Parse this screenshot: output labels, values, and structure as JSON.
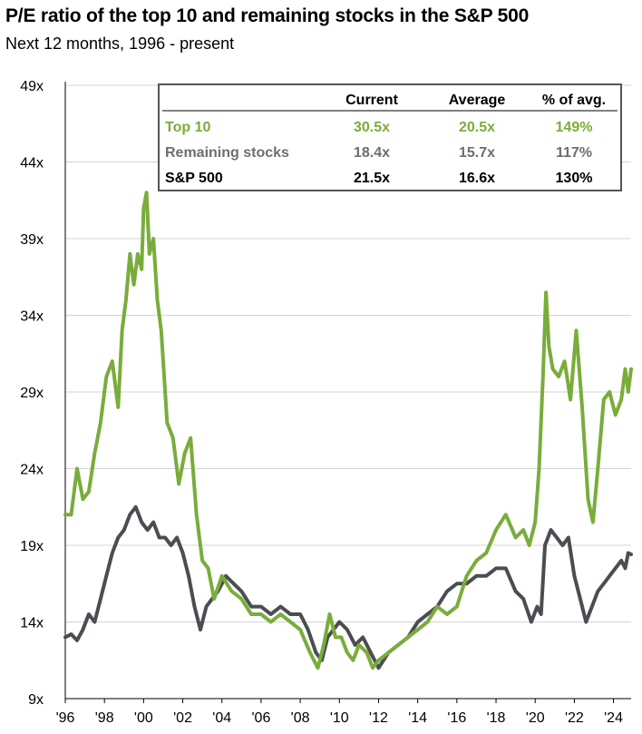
{
  "title": "P/E ratio of the top 10 and remaining stocks in the S&P 500",
  "subtitle": "Next 12 months, 1996 - present",
  "colors": {
    "top10": "#7aac3b",
    "remaining": "#4a4d52",
    "sp500": "#000000"
  },
  "table": {
    "headers": [
      "Current",
      "Average",
      "% of avg."
    ],
    "rows": [
      {
        "label": "Top 10",
        "color": "#7aac3b",
        "values": [
          "30.5x",
          "20.5x",
          "149%"
        ]
      },
      {
        "label": "Remaining stocks",
        "color": "#6b6e73",
        "values": [
          "18.4x",
          "15.7x",
          "117%"
        ]
      },
      {
        "label": "S&P 500",
        "color": "#000000",
        "values": [
          "21.5x",
          "16.6x",
          "130%"
        ]
      }
    ]
  },
  "chart_data": {
    "type": "line",
    "title": "P/E ratio of the top 10 and remaining stocks in the S&P 500",
    "subtitle": "Next 12 months, 1996 - present",
    "xlabel": "",
    "ylabel": "",
    "xlim": [
      1996,
      2024.9
    ],
    "ylim": [
      9,
      49
    ],
    "y_ticks": [
      9,
      14,
      19,
      24,
      29,
      34,
      39,
      44,
      49
    ],
    "y_tick_labels": [
      "9x",
      "14x",
      "19x",
      "24x",
      "29x",
      "34x",
      "39x",
      "44x",
      "49x"
    ],
    "x_ticks": [
      1996,
      1998,
      2000,
      2002,
      2004,
      2006,
      2008,
      2010,
      2012,
      2014,
      2016,
      2018,
      2020,
      2022,
      2024
    ],
    "x_tick_labels": [
      "'96",
      "'98",
      "'00",
      "'02",
      "'04",
      "'06",
      "'08",
      "'10",
      "'12",
      "'14",
      "'16",
      "'18",
      "'20",
      "'22",
      "'24"
    ],
    "series": [
      {
        "name": "Top 10",
        "color": "#7aac3b",
        "x": [
          1996,
          1996.3,
          1996.6,
          1996.9,
          1997.2,
          1997.5,
          1997.8,
          1998.1,
          1998.4,
          1998.7,
          1998.9,
          1999.1,
          1999.3,
          1999.5,
          1999.7,
          1999.9,
          2000.0,
          2000.15,
          2000.3,
          2000.5,
          2000.7,
          2000.9,
          2001.2,
          2001.5,
          2001.8,
          2002.1,
          2002.4,
          2002.7,
          2003.0,
          2003.3,
          2003.6,
          2004.0,
          2004.5,
          2005.0,
          2005.5,
          2006.0,
          2006.5,
          2007.0,
          2007.5,
          2008.0,
          2008.5,
          2008.9,
          2009.2,
          2009.5,
          2009.8,
          2010.1,
          2010.4,
          2010.7,
          2011.0,
          2011.4,
          2011.7,
          2012.0,
          2012.5,
          2013.0,
          2013.5,
          2014.0,
          2014.5,
          2015.0,
          2015.5,
          2016.0,
          2016.5,
          2017.0,
          2017.5,
          2018.0,
          2018.5,
          2019.0,
          2019.4,
          2019.7,
          2020.0,
          2020.2,
          2020.4,
          2020.55,
          2020.7,
          2020.9,
          2021.2,
          2021.5,
          2021.8,
          2022.1,
          2022.4,
          2022.7,
          2022.95,
          2023.2,
          2023.5,
          2023.8,
          2024.1,
          2024.4,
          2024.6,
          2024.75,
          2024.9
        ],
        "values": [
          21,
          21,
          24,
          22,
          22.5,
          25,
          27,
          30,
          31,
          28,
          33,
          35,
          38,
          36,
          38,
          37,
          41,
          42,
          38,
          39,
          35,
          33,
          27,
          26,
          23,
          25,
          26,
          21,
          18,
          17.5,
          15.5,
          17,
          16,
          15.5,
          14.5,
          14.5,
          14,
          14.5,
          14,
          13.5,
          12,
          11,
          12.5,
          14.5,
          13,
          13,
          12,
          11.5,
          12.5,
          12,
          11,
          11.5,
          12,
          12.5,
          13,
          13.5,
          14,
          15,
          14.5,
          15,
          17,
          18,
          18.5,
          20,
          21,
          19.5,
          20,
          19,
          20.5,
          24,
          30,
          35.5,
          32,
          30.5,
          30,
          31,
          28.5,
          33,
          28,
          22,
          20.5,
          24,
          28.5,
          29,
          27.5,
          28.5,
          30.5,
          29,
          30.5
        ]
      },
      {
        "name": "Remaining stocks",
        "color": "#4a4d52",
        "x": [
          1996,
          1996.3,
          1996.6,
          1996.9,
          1997.2,
          1997.5,
          1997.8,
          1998.1,
          1998.4,
          1998.7,
          1999.0,
          1999.3,
          1999.6,
          1999.9,
          2000.2,
          2000.5,
          2000.8,
          2001.1,
          2001.4,
          2001.7,
          2002.0,
          2002.3,
          2002.6,
          2002.9,
          2003.2,
          2003.5,
          2003.8,
          2004.2,
          2004.6,
          2005.0,
          2005.5,
          2006.0,
          2006.5,
          2007.0,
          2007.5,
          2008.0,
          2008.4,
          2008.8,
          2009.1,
          2009.4,
          2009.7,
          2010.0,
          2010.4,
          2010.8,
          2011.2,
          2011.6,
          2012.0,
          2012.5,
          2013.0,
          2013.5,
          2014.0,
          2014.5,
          2015.0,
          2015.5,
          2016.0,
          2016.5,
          2017.0,
          2017.5,
          2018.0,
          2018.5,
          2019.0,
          2019.4,
          2019.8,
          2020.1,
          2020.3,
          2020.5,
          2020.8,
          2021.1,
          2021.4,
          2021.7,
          2022.0,
          2022.3,
          2022.6,
          2022.9,
          2023.2,
          2023.5,
          2023.8,
          2024.1,
          2024.4,
          2024.6,
          2024.75,
          2024.9
        ],
        "values": [
          13,
          13.2,
          12.8,
          13.5,
          14.5,
          14,
          15.5,
          17,
          18.5,
          19.5,
          20,
          21,
          21.5,
          20.5,
          20,
          20.5,
          19.5,
          19.5,
          19,
          19.5,
          18.5,
          17,
          15,
          13.5,
          15,
          15.5,
          16,
          17,
          16.5,
          16,
          15,
          15,
          14.5,
          15,
          14.5,
          14.5,
          13.5,
          12,
          11.5,
          13,
          13.5,
          14,
          13.5,
          12.5,
          13,
          12,
          11,
          12,
          12.5,
          13,
          14,
          14.5,
          15,
          16,
          16.5,
          16.5,
          17,
          17,
          17.5,
          17.5,
          16,
          15.5,
          14,
          15,
          14.5,
          19,
          20,
          19.5,
          19,
          19.5,
          17,
          15.5,
          14,
          15,
          16,
          16.5,
          17,
          17.5,
          18,
          17.5,
          18.5,
          18.4
        ]
      }
    ]
  }
}
